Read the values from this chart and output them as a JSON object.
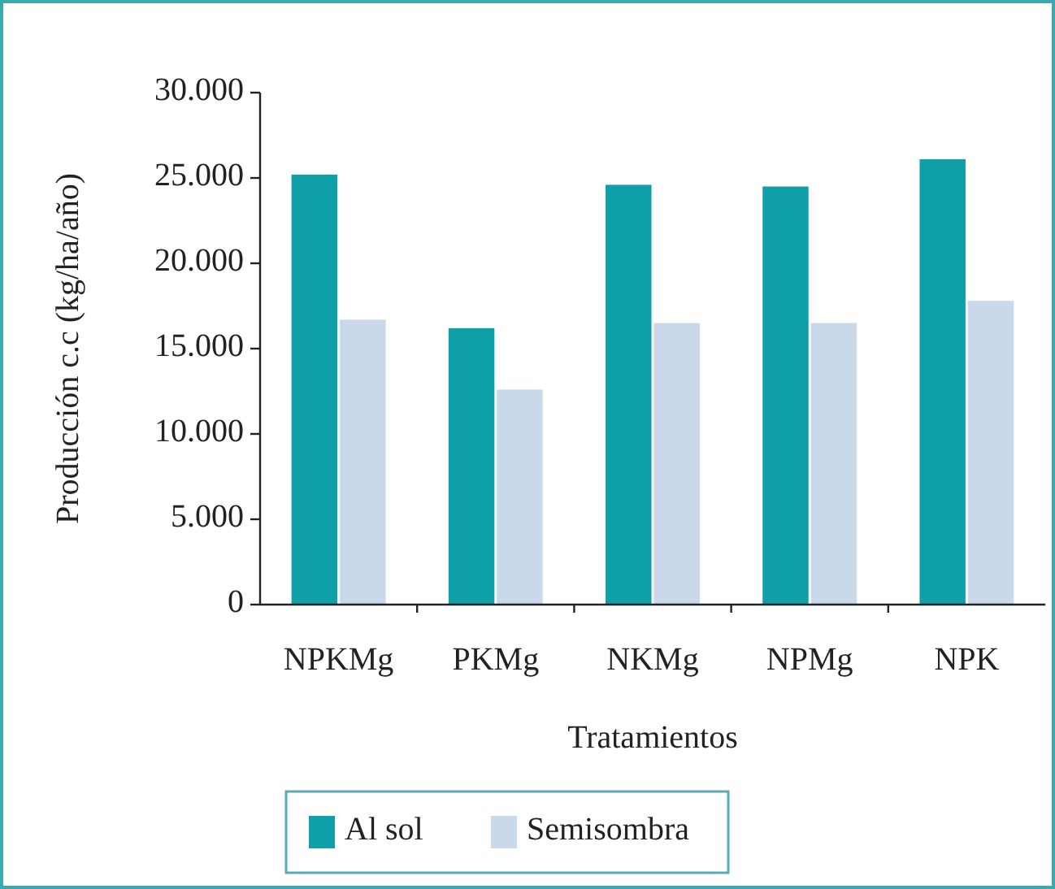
{
  "chart_data": {
    "type": "bar",
    "categories": [
      "NPKMg",
      "PKMg",
      "NKMg",
      "NPMg",
      "NPK"
    ],
    "series": [
      {
        "name": "Al sol",
        "color": "#0f9fa8",
        "values": [
          25200,
          16200,
          24600,
          24500,
          26100
        ]
      },
      {
        "name": "Semisombra",
        "color": "#c9d9ea",
        "values": [
          16700,
          12600,
          16500,
          16500,
          17800
        ]
      }
    ],
    "xlabel": "Tratamientos",
    "ylabel": "Producción c.c (kg/ha/año)",
    "ylim": [
      0,
      30000
    ],
    "yticks": [
      0,
      {
        "value": 5000,
        "label": "5.000"
      },
      {
        "value": 10000,
        "label": "10.000"
      },
      {
        "value": 15000,
        "label": "15.000"
      },
      {
        "value": 20000,
        "label": "20.000"
      },
      {
        "value": 25000,
        "label": "25.000"
      },
      {
        "value": 30000,
        "label": "30.000"
      }
    ],
    "legend": "bottom"
  }
}
